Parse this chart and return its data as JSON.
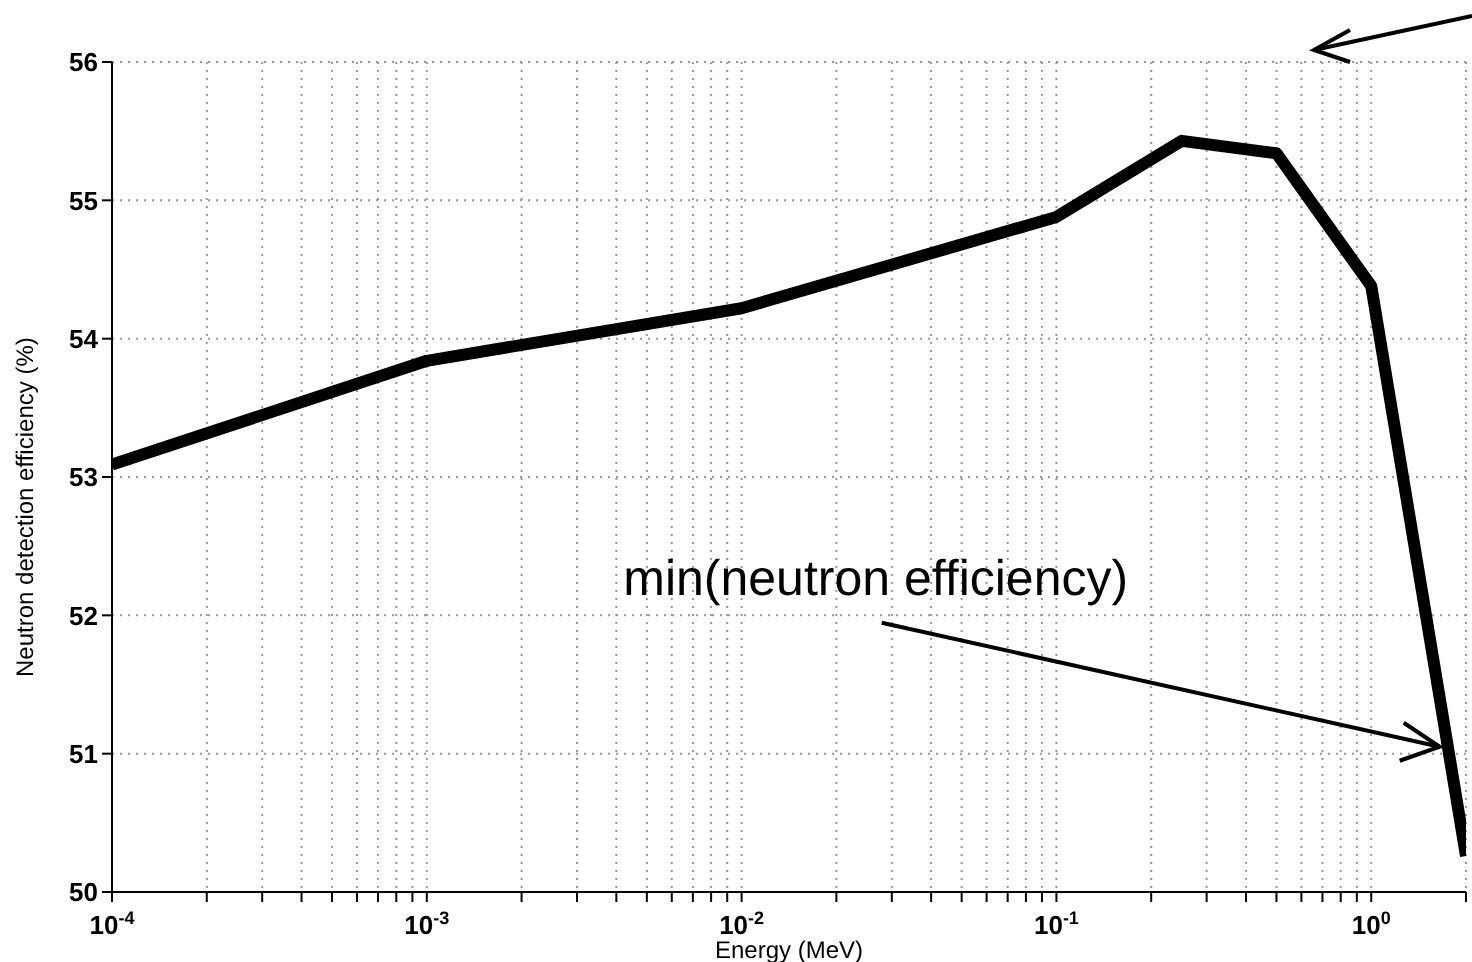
{
  "chart_data": {
    "type": "line",
    "xlabel": "Energy (MeV)",
    "ylabel": "Neutron detection efficiency (%)",
    "x": [
      0.0001,
      0.001,
      0.01,
      0.1,
      0.25,
      0.5,
      1,
      2
    ],
    "series": [
      {
        "color": "#000000",
        "values": [
          53.09,
          53.84,
          54.22,
          54.88,
          55.43,
          55.34,
          54.38,
          50.26
        ]
      }
    ],
    "log": "x",
    "xlim": [
      0.0001,
      2
    ],
    "ylim": [
      50,
      56
    ],
    "yticks": [
      50,
      51,
      52,
      53,
      54,
      55,
      56
    ],
    "xticks": [
      {
        "value": 0.0001,
        "label": "10$^{-4}$"
      },
      {
        "value": 0.0002,
        "label": null
      },
      {
        "value": 0.0003,
        "label": null
      },
      {
        "value": 0.0004,
        "label": null
      },
      {
        "value": 0.0005,
        "label": null
      },
      {
        "value": 0.0006,
        "label": null
      },
      {
        "value": 0.0007,
        "label": null
      },
      {
        "value": 0.0008,
        "label": null
      },
      {
        "value": 0.0009,
        "label": null
      },
      {
        "value": 0.001,
        "label": "10$^{-3}$"
      },
      {
        "value": 0.002,
        "label": null
      },
      {
        "value": 0.003,
        "label": null
      },
      {
        "value": 0.004,
        "label": null
      },
      {
        "value": 0.005,
        "label": null
      },
      {
        "value": 0.006,
        "label": null
      },
      {
        "value": 0.007,
        "label": null
      },
      {
        "value": 0.008,
        "label": null
      },
      {
        "value": 0.009,
        "label": null
      },
      {
        "value": 0.01,
        "label": "10$^{-2}$"
      },
      {
        "value": 0.02,
        "label": null
      },
      {
        "value": 0.03,
        "label": null
      },
      {
        "value": 0.04,
        "label": null
      },
      {
        "value": 0.05,
        "label": null
      },
      {
        "value": 0.06,
        "label": null
      },
      {
        "value": 0.07,
        "label": null
      },
      {
        "value": 0.08,
        "label": null
      },
      {
        "value": 0.09,
        "label": null
      },
      {
        "value": 0.1,
        "label": "10$^{-1}$"
      },
      {
        "value": 0.2,
        "label": null
      },
      {
        "value": 0.3,
        "label": null
      },
      {
        "value": 0.4,
        "label": null
      },
      {
        "value": 0.5,
        "label": null
      },
      {
        "value": 0.6,
        "label": null
      },
      {
        "value": 0.7,
        "label": null
      },
      {
        "value": 0.8,
        "label": null
      },
      {
        "value": 0.9,
        "label": null
      },
      {
        "value": 1,
        "label": "10$^{0}$"
      },
      {
        "value": 2,
        "label": null
      }
    ],
    "grid": true,
    "line_style": "solid",
    "annotations": [
      {
        "text": "min(neutron efficiency)",
        "x": 1.65,
        "y": 51.05
      }
    ]
  }
}
